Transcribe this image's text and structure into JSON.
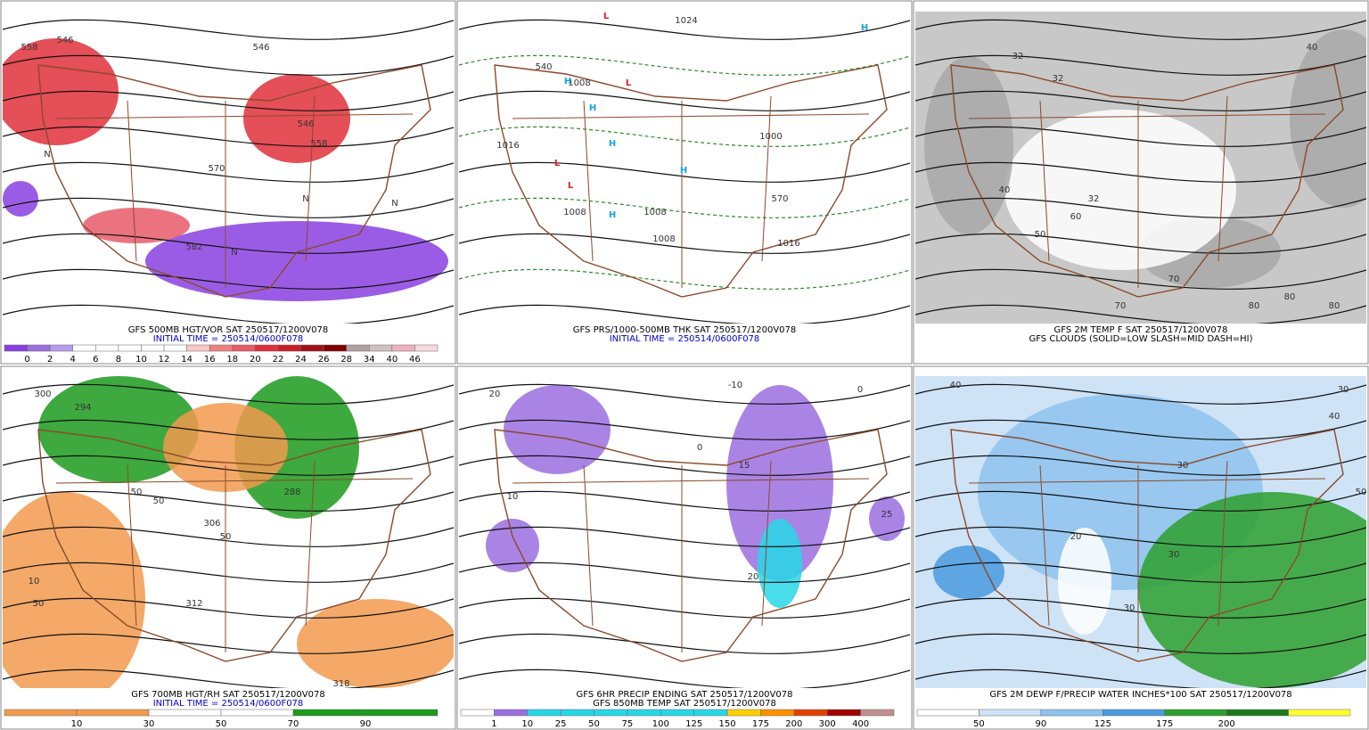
{
  "panels": [
    {
      "caption": "GFS 500MB HGT/VOR SAT 250517/1200V078",
      "initial_time": "INITIAL TIME = 250514/0600F078",
      "colorbar": [
        0,
        2,
        4,
        6,
        8,
        10,
        12,
        14,
        16,
        18,
        20,
        22,
        24,
        26,
        28,
        34,
        40,
        46
      ],
      "map_labels": [
        "558",
        "546",
        "546",
        "546",
        "558",
        "570",
        "582",
        "N",
        "N",
        "N",
        "N"
      ]
    },
    {
      "caption": "GFS PRS/1000-500MB THK SAT 250517/1200V078",
      "initial_time": "INITIAL TIME = 250514/0600F078",
      "map_labels": [
        "1024",
        "1008",
        "1016",
        "1016",
        "1008",
        "1008",
        "1008",
        "1000",
        "540",
        "570",
        "L",
        "L",
        "L",
        "L",
        "H",
        "H",
        "H",
        "H",
        "H",
        "H"
      ]
    },
    {
      "caption": "GFS 2M TEMP F SAT 250517/1200V078",
      "subcaption": "GFS CLOUDS (SOLID=LOW SLASH=MID DASH=HI)",
      "map_labels": [
        "32",
        "32",
        "32",
        "40",
        "50",
        "60",
        "70",
        "70",
        "80",
        "80",
        "80",
        "40"
      ]
    },
    {
      "caption": "GFS 700MB HGT/RH SAT 250517/1200V078",
      "initial_time": "INITIAL TIME = 250514/0600F078",
      "colorbar": [
        10,
        30,
        50,
        70,
        90
      ],
      "map_labels": [
        "294",
        "300",
        "306",
        "312",
        "318",
        "288",
        "50",
        "50",
        "50",
        "10",
        "50"
      ]
    },
    {
      "caption": "GFS 6HR PRECIP ENDING SAT 250517/1200V078",
      "subcaption": "GFS 850MB TEMP SAT 250517/1200V078",
      "colorbar": [
        1,
        10,
        25,
        50,
        75,
        100,
        125,
        150,
        175,
        200,
        300,
        400
      ],
      "map_labels": [
        "-10",
        "0",
        "0",
        "10",
        "15",
        "20",
        "20",
        "25"
      ]
    },
    {
      "caption": "GFS 2M DEWP F/PRECIP WATER INCHES*100 SAT 250517/1200V078",
      "colorbar": [
        50,
        90,
        125,
        175,
        200
      ],
      "map_labels": [
        "40",
        "30",
        "30",
        "30",
        "20",
        "30",
        "40",
        "50"
      ]
    }
  ]
}
